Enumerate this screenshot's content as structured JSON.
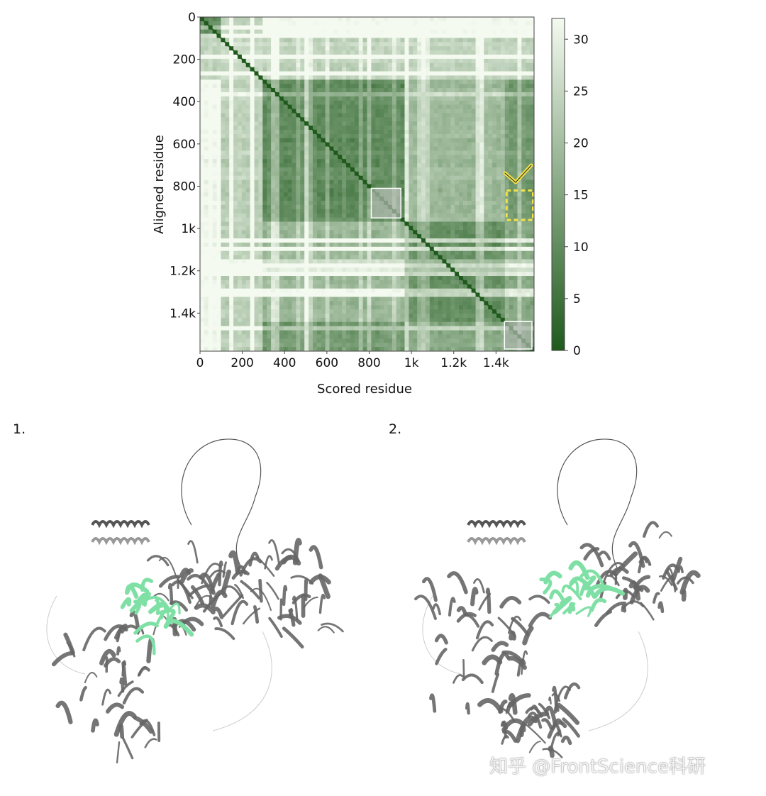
{
  "chart_data": {
    "type": "heatmap",
    "title": "",
    "xlabel": "Scored residue",
    "ylabel": "Aligned residue",
    "x_range": [
      0,
      1580
    ],
    "y_range": [
      0,
      1580
    ],
    "x_ticks": [
      {
        "value": 0,
        "label": "0"
      },
      {
        "value": 200,
        "label": "200"
      },
      {
        "value": 400,
        "label": "400"
      },
      {
        "value": 600,
        "label": "600"
      },
      {
        "value": 800,
        "label": "800"
      },
      {
        "value": 1000,
        "label": "1k"
      },
      {
        "value": 1200,
        "label": "1.2k"
      },
      {
        "value": 1400,
        "label": "1.4k"
      }
    ],
    "y_ticks": [
      {
        "value": 0,
        "label": "0"
      },
      {
        "value": 200,
        "label": "200"
      },
      {
        "value": 400,
        "label": "400"
      },
      {
        "value": 600,
        "label": "600"
      },
      {
        "value": 800,
        "label": "800"
      },
      {
        "value": 1000,
        "label": "1k"
      },
      {
        "value": 1200,
        "label": "1.2k"
      },
      {
        "value": 1400,
        "label": "1.4k"
      }
    ],
    "colorbar": {
      "min": 0,
      "max": 32,
      "low_color": "#1f5a1c",
      "high_color": "#f4faf0",
      "ticks": [
        {
          "value": 0,
          "label": "0"
        },
        {
          "value": 5,
          "label": "5"
        },
        {
          "value": 10,
          "label": "10"
        },
        {
          "value": 15,
          "label": "15"
        },
        {
          "value": 20,
          "label": "20"
        },
        {
          "value": 25,
          "label": "25"
        },
        {
          "value": 30,
          "label": "30"
        }
      ]
    },
    "domains": [
      {
        "range": [
          0,
          100
        ],
        "intra_value": 6
      },
      {
        "range": [
          100,
          300
        ],
        "intra_value": 22
      },
      {
        "range": [
          300,
          960
        ],
        "intra_value": 6
      },
      {
        "range": [
          960,
          1440
        ],
        "intra_value": 7
      },
      {
        "range": [
          1440,
          1580
        ],
        "intra_value": 6
      }
    ],
    "highlight_boxes": [
      {
        "x_range": [
          810,
          950
        ],
        "y_range": [
          810,
          950
        ],
        "style": "filled-grey"
      },
      {
        "x_range": [
          1440,
          1570
        ],
        "y_range": [
          1440,
          1570
        ],
        "style": "filled-grey"
      },
      {
        "x_range": [
          1450,
          1575
        ],
        "y_range": [
          820,
          960
        ],
        "style": "dashed-yellow"
      }
    ],
    "check_mark": {
      "color": "#f2e04a"
    }
  },
  "panels": [
    {
      "label": "1.",
      "highlight_color": "#7ee0a4",
      "chain_color": "#666666"
    },
    {
      "label": "2.",
      "highlight_color": "#7ee0a4",
      "chain_color": "#666666"
    }
  ],
  "watermark": "知乎 @FrontScience科研"
}
